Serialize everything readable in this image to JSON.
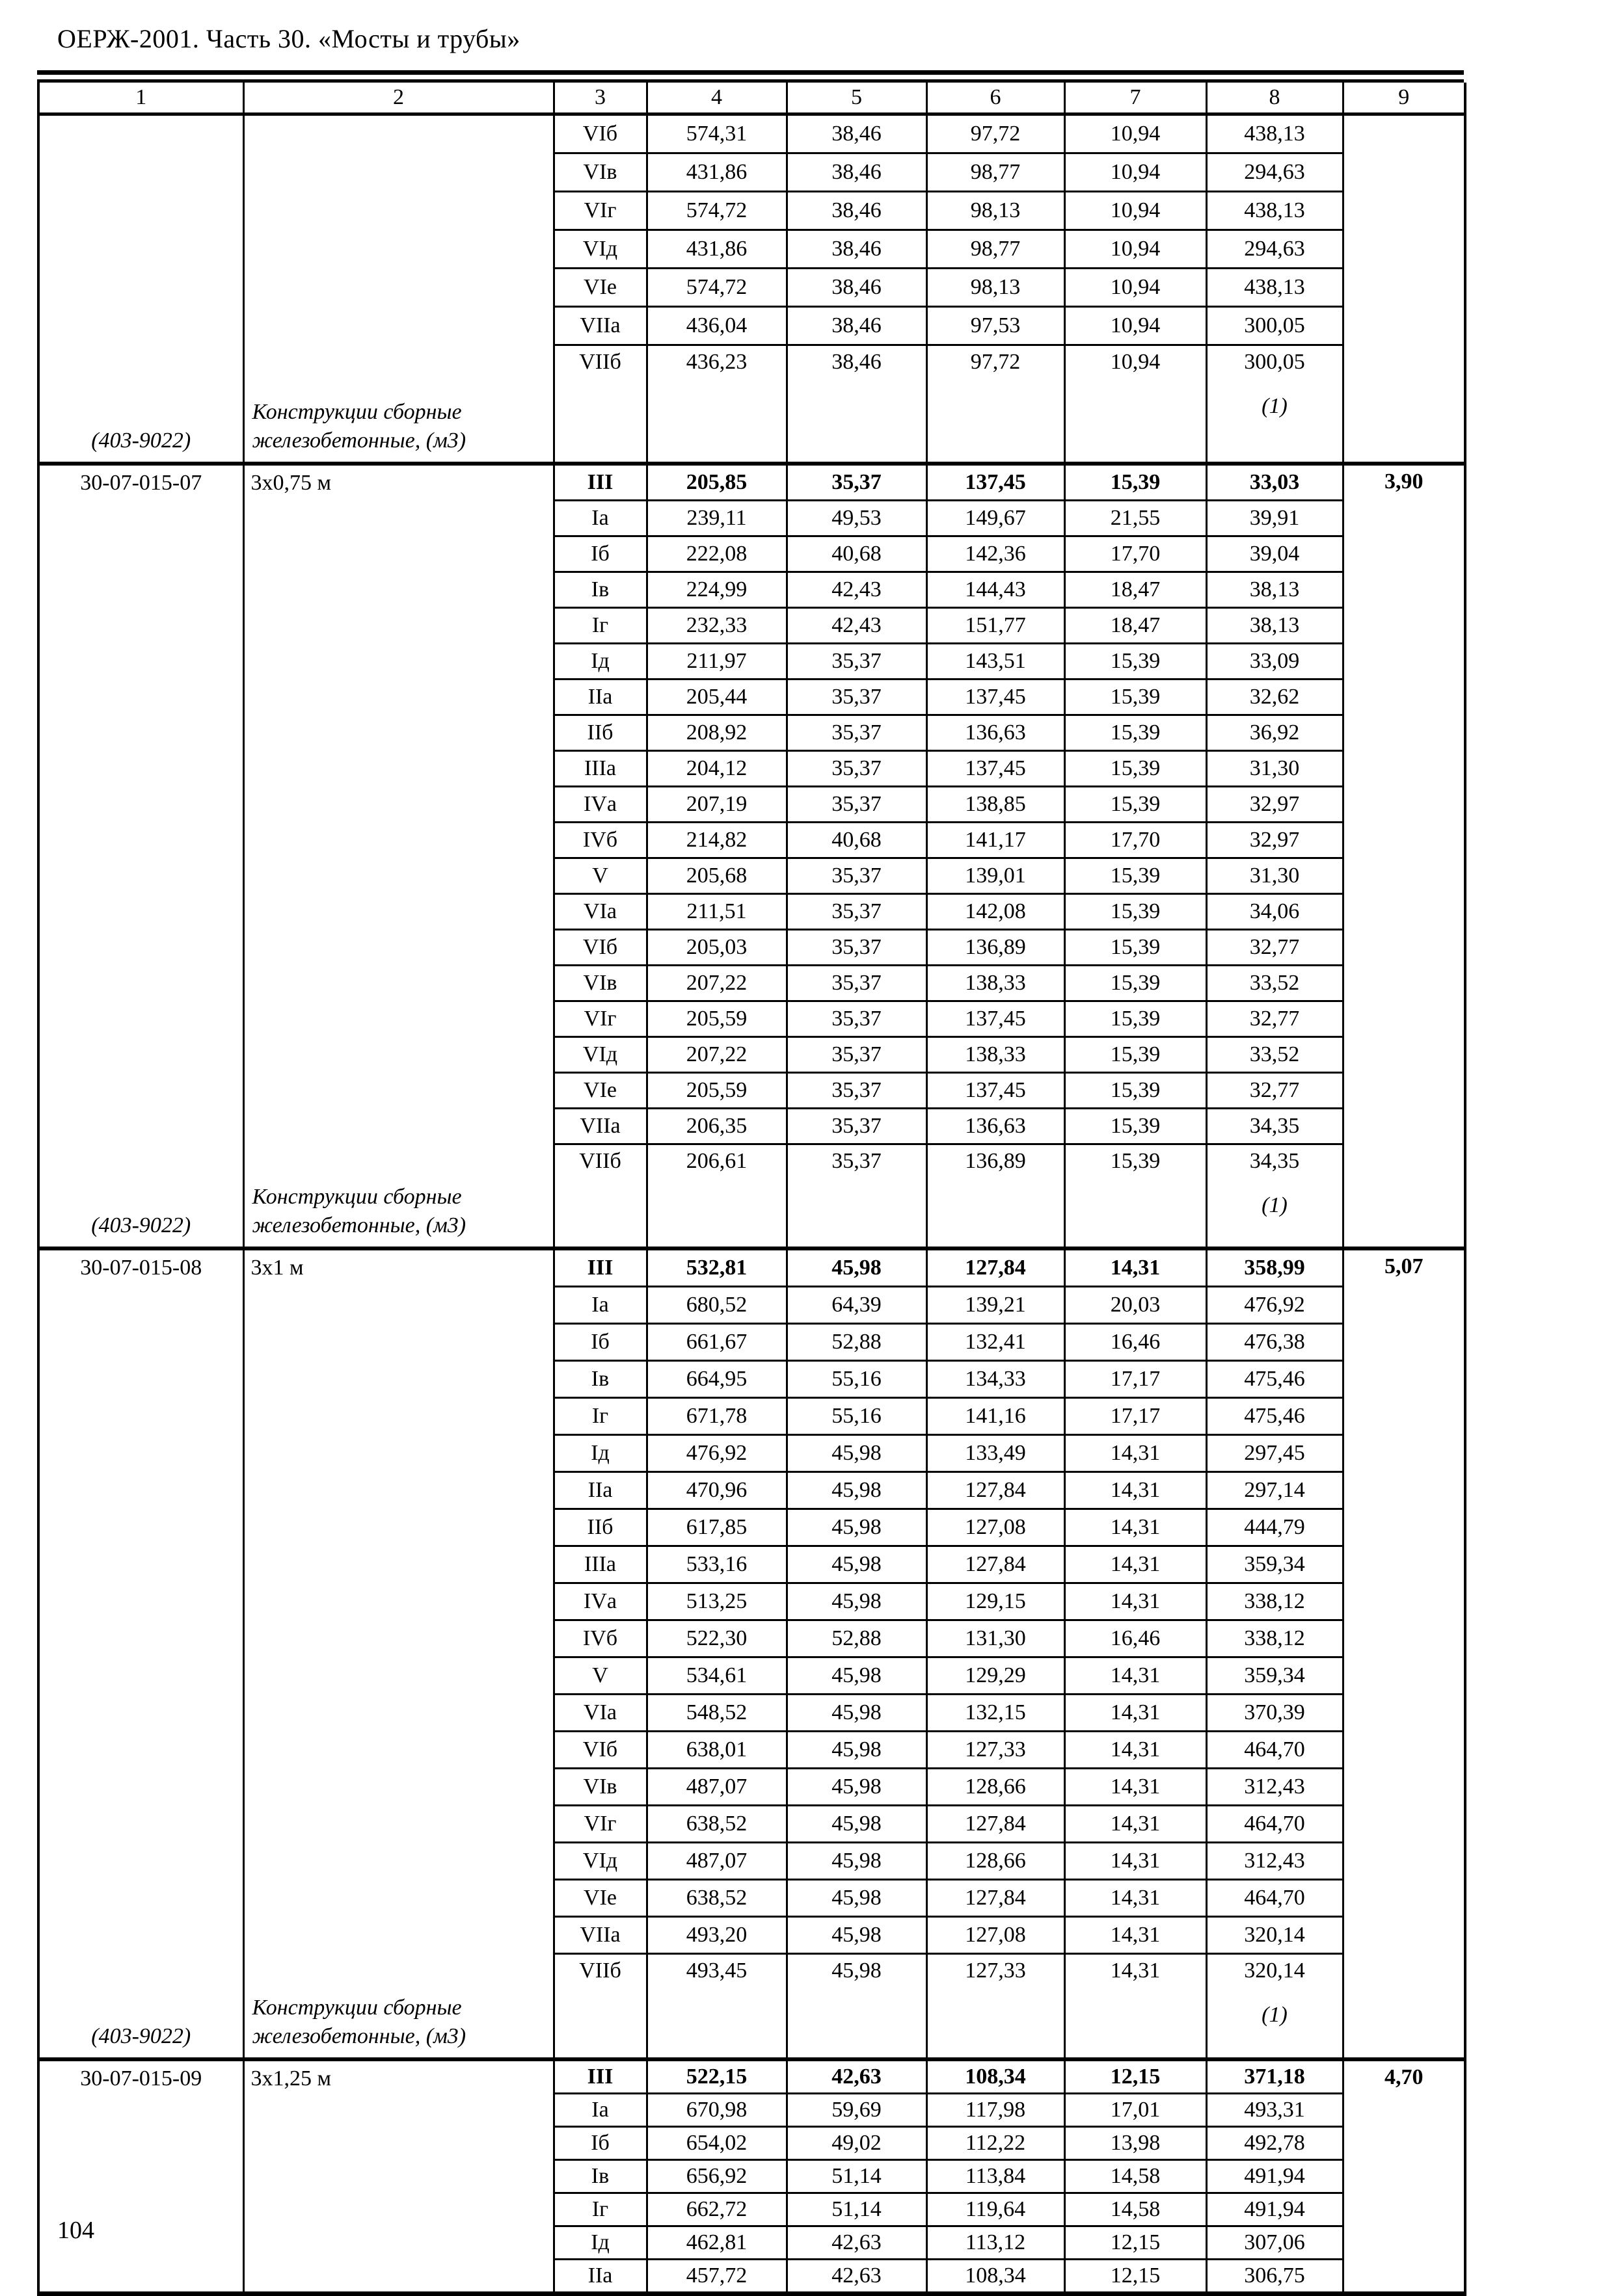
{
  "page": {
    "header_title": "ОЕРЖ-2001. Часть 30. «Мосты и трубы»",
    "page_number": "104"
  },
  "table": {
    "column_headers": [
      "1",
      "2",
      "3",
      "4",
      "5",
      "6",
      "7",
      "8",
      "9"
    ],
    "sections": [
      {
        "code": "",
        "size": "",
        "factor": "",
        "resource_code": "(403-9022)",
        "resource_name_line1": "Конструкции сборные",
        "resource_name_line2": "железобетонные, (м3)",
        "footnote": "(1)",
        "rows": [
          {
            "zone": "VIб",
            "bold": false,
            "values": [
              "574,31",
              "38,46",
              "97,72",
              "10,94",
              "438,13"
            ]
          },
          {
            "zone": "VIв",
            "bold": false,
            "values": [
              "431,86",
              "38,46",
              "98,77",
              "10,94",
              "294,63"
            ]
          },
          {
            "zone": "VIг",
            "bold": false,
            "values": [
              "574,72",
              "38,46",
              "98,13",
              "10,94",
              "438,13"
            ]
          },
          {
            "zone": "VIд",
            "bold": false,
            "values": [
              "431,86",
              "38,46",
              "98,77",
              "10,94",
              "294,63"
            ]
          },
          {
            "zone": "VIе",
            "bold": false,
            "values": [
              "574,72",
              "38,46",
              "98,13",
              "10,94",
              "438,13"
            ]
          },
          {
            "zone": "VIIа",
            "bold": false,
            "values": [
              "436,04",
              "38,46",
              "97,53",
              "10,94",
              "300,05"
            ]
          },
          {
            "zone": "VIIб",
            "bold": false,
            "values": [
              "436,23",
              "38,46",
              "97,72",
              "10,94",
              "300,05"
            ]
          }
        ]
      },
      {
        "code": "30-07-015-07",
        "size": "3х0,75 м",
        "factor": "3,90",
        "resource_code": "(403-9022)",
        "resource_name_line1": "Конструкции сборные",
        "resource_name_line2": "железобетонные, (м3)",
        "footnote": "(1)",
        "rows": [
          {
            "zone": "III",
            "bold": true,
            "values": [
              "205,85",
              "35,37",
              "137,45",
              "15,39",
              "33,03"
            ]
          },
          {
            "zone": "Iа",
            "bold": false,
            "values": [
              "239,11",
              "49,53",
              "149,67",
              "21,55",
              "39,91"
            ]
          },
          {
            "zone": "Iб",
            "bold": false,
            "values": [
              "222,08",
              "40,68",
              "142,36",
              "17,70",
              "39,04"
            ]
          },
          {
            "zone": "Iв",
            "bold": false,
            "values": [
              "224,99",
              "42,43",
              "144,43",
              "18,47",
              "38,13"
            ]
          },
          {
            "zone": "Iг",
            "bold": false,
            "values": [
              "232,33",
              "42,43",
              "151,77",
              "18,47",
              "38,13"
            ]
          },
          {
            "zone": "Iд",
            "bold": false,
            "values": [
              "211,97",
              "35,37",
              "143,51",
              "15,39",
              "33,09"
            ]
          },
          {
            "zone": "IIа",
            "bold": false,
            "values": [
              "205,44",
              "35,37",
              "137,45",
              "15,39",
              "32,62"
            ]
          },
          {
            "zone": "IIб",
            "bold": false,
            "values": [
              "208,92",
              "35,37",
              "136,63",
              "15,39",
              "36,92"
            ]
          },
          {
            "zone": "IIIа",
            "bold": false,
            "values": [
              "204,12",
              "35,37",
              "137,45",
              "15,39",
              "31,30"
            ]
          },
          {
            "zone": "IVа",
            "bold": false,
            "values": [
              "207,19",
              "35,37",
              "138,85",
              "15,39",
              "32,97"
            ]
          },
          {
            "zone": "IVб",
            "bold": false,
            "values": [
              "214,82",
              "40,68",
              "141,17",
              "17,70",
              "32,97"
            ]
          },
          {
            "zone": "V",
            "bold": false,
            "values": [
              "205,68",
              "35,37",
              "139,01",
              "15,39",
              "31,30"
            ]
          },
          {
            "zone": "VIа",
            "bold": false,
            "values": [
              "211,51",
              "35,37",
              "142,08",
              "15,39",
              "34,06"
            ]
          },
          {
            "zone": "VIб",
            "bold": false,
            "values": [
              "205,03",
              "35,37",
              "136,89",
              "15,39",
              "32,77"
            ]
          },
          {
            "zone": "VIв",
            "bold": false,
            "values": [
              "207,22",
              "35,37",
              "138,33",
              "15,39",
              "33,52"
            ]
          },
          {
            "zone": "VIг",
            "bold": false,
            "values": [
              "205,59",
              "35,37",
              "137,45",
              "15,39",
              "32,77"
            ]
          },
          {
            "zone": "VIд",
            "bold": false,
            "values": [
              "207,22",
              "35,37",
              "138,33",
              "15,39",
              "33,52"
            ]
          },
          {
            "zone": "VIе",
            "bold": false,
            "values": [
              "205,59",
              "35,37",
              "137,45",
              "15,39",
              "32,77"
            ]
          },
          {
            "zone": "VIIа",
            "bold": false,
            "values": [
              "206,35",
              "35,37",
              "136,63",
              "15,39",
              "34,35"
            ]
          },
          {
            "zone": "VIIб",
            "bold": false,
            "values": [
              "206,61",
              "35,37",
              "136,89",
              "15,39",
              "34,35"
            ]
          }
        ]
      },
      {
        "code": "30-07-015-08",
        "size": "3х1 м",
        "factor": "5,07",
        "resource_code": "(403-9022)",
        "resource_name_line1": "Конструкции сборные",
        "resource_name_line2": "железобетонные, (м3)",
        "footnote": "(1)",
        "rows": [
          {
            "zone": "III",
            "bold": true,
            "values": [
              "532,81",
              "45,98",
              "127,84",
              "14,31",
              "358,99"
            ]
          },
          {
            "zone": "Iа",
            "bold": false,
            "values": [
              "680,52",
              "64,39",
              "139,21",
              "20,03",
              "476,92"
            ]
          },
          {
            "zone": "Iб",
            "bold": false,
            "values": [
              "661,67",
              "52,88",
              "132,41",
              "16,46",
              "476,38"
            ]
          },
          {
            "zone": "Iв",
            "bold": false,
            "values": [
              "664,95",
              "55,16",
              "134,33",
              "17,17",
              "475,46"
            ]
          },
          {
            "zone": "Iг",
            "bold": false,
            "values": [
              "671,78",
              "55,16",
              "141,16",
              "17,17",
              "475,46"
            ]
          },
          {
            "zone": "Iд",
            "bold": false,
            "values": [
              "476,92",
              "45,98",
              "133,49",
              "14,31",
              "297,45"
            ]
          },
          {
            "zone": "IIа",
            "bold": false,
            "values": [
              "470,96",
              "45,98",
              "127,84",
              "14,31",
              "297,14"
            ]
          },
          {
            "zone": "IIб",
            "bold": false,
            "values": [
              "617,85",
              "45,98",
              "127,08",
              "14,31",
              "444,79"
            ]
          },
          {
            "zone": "IIIа",
            "bold": false,
            "values": [
              "533,16",
              "45,98",
              "127,84",
              "14,31",
              "359,34"
            ]
          },
          {
            "zone": "IVа",
            "bold": false,
            "values": [
              "513,25",
              "45,98",
              "129,15",
              "14,31",
              "338,12"
            ]
          },
          {
            "zone": "IVб",
            "bold": false,
            "values": [
              "522,30",
              "52,88",
              "131,30",
              "16,46",
              "338,12"
            ]
          },
          {
            "zone": "V",
            "bold": false,
            "values": [
              "534,61",
              "45,98",
              "129,29",
              "14,31",
              "359,34"
            ]
          },
          {
            "zone": "VIа",
            "bold": false,
            "values": [
              "548,52",
              "45,98",
              "132,15",
              "14,31",
              "370,39"
            ]
          },
          {
            "zone": "VIб",
            "bold": false,
            "values": [
              "638,01",
              "45,98",
              "127,33",
              "14,31",
              "464,70"
            ]
          },
          {
            "zone": "VIв",
            "bold": false,
            "values": [
              "487,07",
              "45,98",
              "128,66",
              "14,31",
              "312,43"
            ]
          },
          {
            "zone": "VIг",
            "bold": false,
            "values": [
              "638,52",
              "45,98",
              "127,84",
              "14,31",
              "464,70"
            ]
          },
          {
            "zone": "VIд",
            "bold": false,
            "values": [
              "487,07",
              "45,98",
              "128,66",
              "14,31",
              "312,43"
            ]
          },
          {
            "zone": "VIе",
            "bold": false,
            "values": [
              "638,52",
              "45,98",
              "127,84",
              "14,31",
              "464,70"
            ]
          },
          {
            "zone": "VIIа",
            "bold": false,
            "values": [
              "493,20",
              "45,98",
              "127,08",
              "14,31",
              "320,14"
            ]
          },
          {
            "zone": "VIIб",
            "bold": false,
            "values": [
              "493,45",
              "45,98",
              "127,33",
              "14,31",
              "320,14"
            ]
          }
        ]
      },
      {
        "code": "30-07-015-09",
        "size": "3х1,25 м",
        "factor": "4,70",
        "resource_code": "",
        "resource_name_line1": "",
        "resource_name_line2": "",
        "footnote": "",
        "rows": [
          {
            "zone": "III",
            "bold": true,
            "values": [
              "522,15",
              "42,63",
              "108,34",
              "12,15",
              "371,18"
            ]
          },
          {
            "zone": "Iа",
            "bold": false,
            "values": [
              "670,98",
              "59,69",
              "117,98",
              "17,01",
              "493,31"
            ]
          },
          {
            "zone": "Iб",
            "bold": false,
            "values": [
              "654,02",
              "49,02",
              "112,22",
              "13,98",
              "492,78"
            ]
          },
          {
            "zone": "Iв",
            "bold": false,
            "values": [
              "656,92",
              "51,14",
              "113,84",
              "14,58",
              "491,94"
            ]
          },
          {
            "zone": "Iг",
            "bold": false,
            "values": [
              "662,72",
              "51,14",
              "119,64",
              "14,58",
              "491,94"
            ]
          },
          {
            "zone": "Iд",
            "bold": false,
            "values": [
              "462,81",
              "42,63",
              "113,12",
              "12,15",
              "307,06"
            ]
          },
          {
            "zone": "IIа",
            "bold": false,
            "values": [
              "457,72",
              "42,63",
              "108,34",
              "12,15",
              "306,75"
            ]
          }
        ]
      }
    ]
  }
}
